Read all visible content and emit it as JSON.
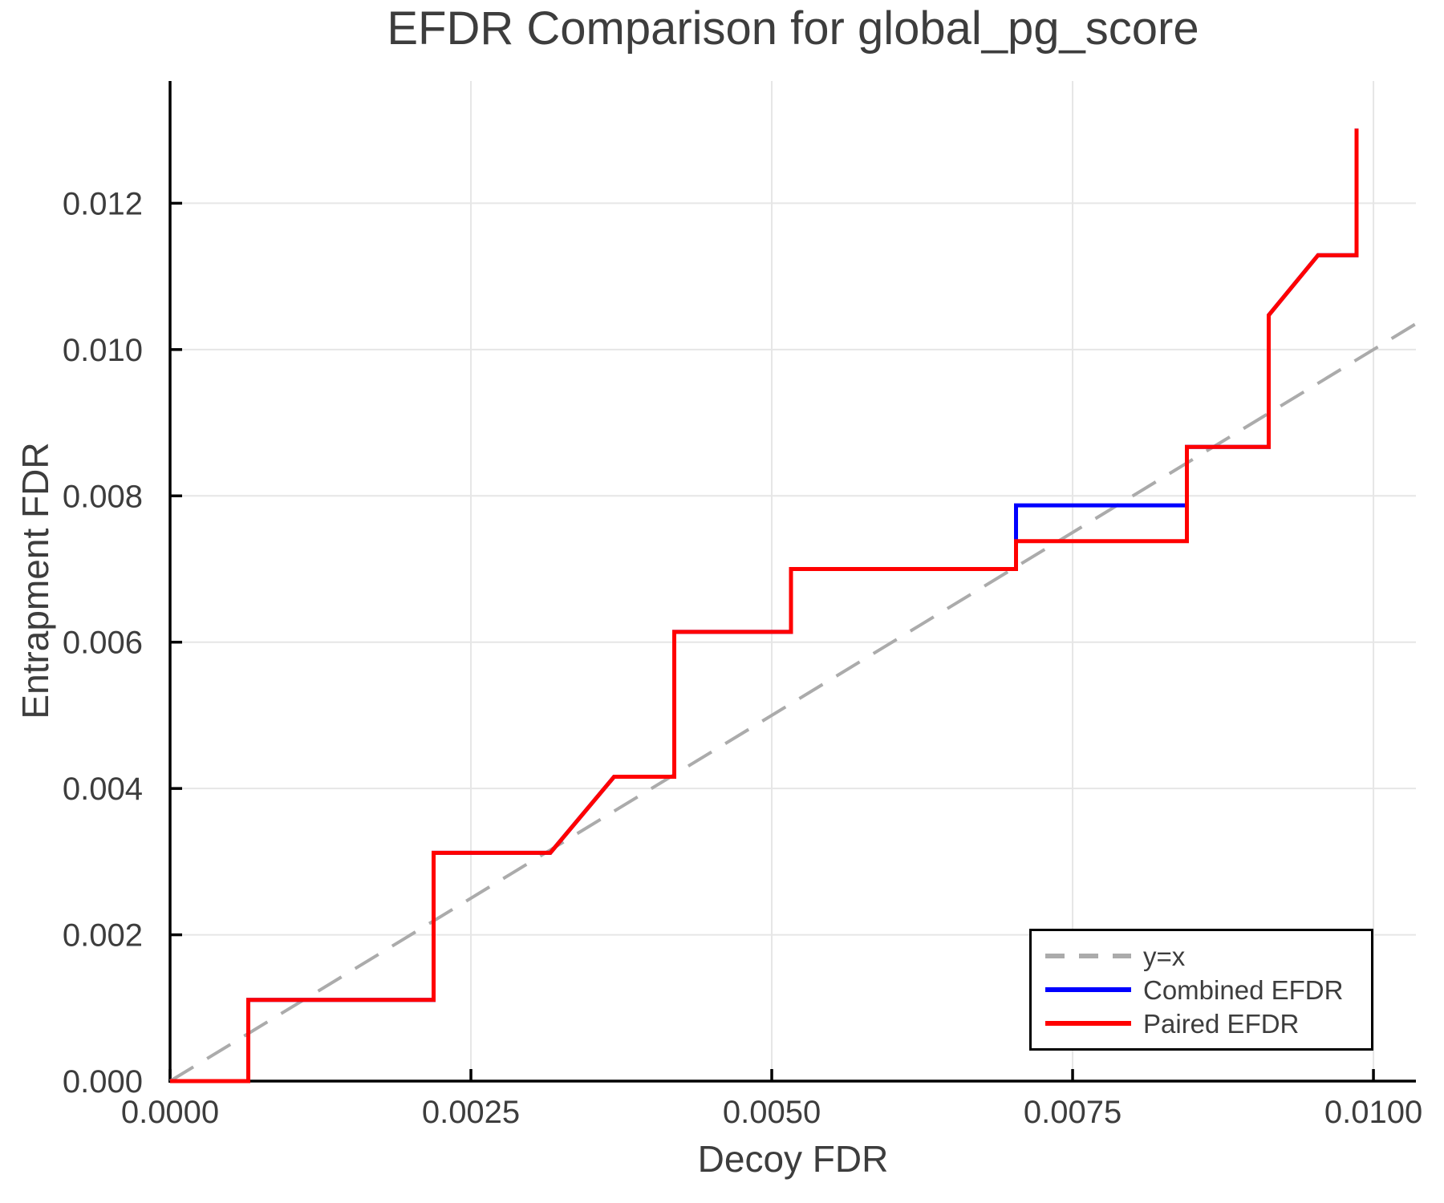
{
  "chart_data": {
    "type": "line",
    "subtype": "step",
    "title": "EFDR Comparison for global_pg_score",
    "xlabel": "Decoy FDR",
    "ylabel": "Entrapment FDR",
    "xlim": [
      0,
      0.010353
    ],
    "ylim": [
      0,
      0.013671
    ],
    "grid": true,
    "x_ticks": {
      "values": [
        0,
        0.0025,
        0.005,
        0.0075,
        0.01
      ],
      "labels": [
        "0.0000",
        "0.0025",
        "0.0050",
        "0.0075",
        "0.0100"
      ]
    },
    "y_ticks": {
      "values": [
        0,
        0.002,
        0.004,
        0.006,
        0.008,
        0.01,
        0.012
      ],
      "labels": [
        "0.000",
        "0.002",
        "0.004",
        "0.006",
        "0.008",
        "0.010",
        "0.012"
      ]
    },
    "series": [
      {
        "name": "y=x",
        "color": "#ababab",
        "style": "dashed",
        "width": 4,
        "points": [
          [
            0,
            0
          ],
          [
            0.010353,
            0.010353
          ]
        ]
      },
      {
        "name": "Combined EFDR",
        "color": "#0000ff",
        "style": "solid",
        "width": 5,
        "points": [
          [
            0,
            0
          ],
          [
            0.00065,
            0
          ],
          [
            0.00065,
            0.00111
          ],
          [
            0.00219,
            0.00111
          ],
          [
            0.00219,
            0.00312
          ],
          [
            0.00316,
            0.00312
          ],
          [
            0.00369,
            0.00416
          ],
          [
            0.00419,
            0.00416
          ],
          [
            0.00419,
            0.00614
          ],
          [
            0.00516,
            0.00614
          ],
          [
            0.00516,
            0.007
          ],
          [
            0.00703,
            0.007
          ],
          [
            0.00703,
            0.00787
          ],
          [
            0.00845,
            0.00787
          ],
          [
            0.00845,
            0.00867
          ],
          [
            0.00913,
            0.00867
          ],
          [
            0.00913,
            0.01047
          ],
          [
            0.00954,
            0.01129
          ],
          [
            0.00986,
            0.01129
          ],
          [
            0.00986,
            0.01302
          ]
        ]
      },
      {
        "name": "Paired EFDR",
        "color": "#ff0000",
        "style": "solid",
        "width": 5,
        "points": [
          [
            0,
            0
          ],
          [
            0.00065,
            0
          ],
          [
            0.00065,
            0.00111
          ],
          [
            0.00219,
            0.00111
          ],
          [
            0.00219,
            0.00312
          ],
          [
            0.00316,
            0.00312
          ],
          [
            0.00369,
            0.00416
          ],
          [
            0.00419,
            0.00416
          ],
          [
            0.00419,
            0.00614
          ],
          [
            0.00516,
            0.00614
          ],
          [
            0.00516,
            0.007
          ],
          [
            0.00703,
            0.007
          ],
          [
            0.00703,
            0.00738
          ],
          [
            0.00845,
            0.00738
          ],
          [
            0.00845,
            0.00867
          ],
          [
            0.00913,
            0.00867
          ],
          [
            0.00913,
            0.01047
          ],
          [
            0.00954,
            0.01129
          ],
          [
            0.00986,
            0.01129
          ],
          [
            0.00986,
            0.01302
          ]
        ]
      }
    ],
    "legend": {
      "position": "lower right",
      "entries": [
        {
          "label": "y=x"
        },
        {
          "label": "Combined EFDR"
        },
        {
          "label": "Paired EFDR"
        }
      ]
    }
  },
  "colors": {
    "background": "#ffffff",
    "grid": "#e6e6e6",
    "spine": "#000000",
    "tick": "#000000",
    "text": "#3d3d3d"
  }
}
